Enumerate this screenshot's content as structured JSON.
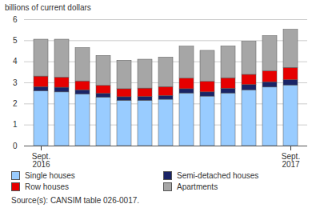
{
  "chart_data": {
    "type": "bar",
    "stacked": true,
    "y_label": "billions of current dollars",
    "categories": [
      "Sept.\n2016",
      null,
      null,
      null,
      null,
      null,
      null,
      null,
      null,
      null,
      null,
      null,
      "Sept.\n2017"
    ],
    "series": [
      {
        "name": "Single houses",
        "color": "#99ccff",
        "values": [
          2.6,
          2.55,
          2.45,
          2.3,
          2.15,
          2.15,
          2.2,
          2.5,
          2.35,
          2.5,
          2.65,
          2.78,
          2.88
        ]
      },
      {
        "name": "Semi-detached houses",
        "color": "#1a2466",
        "values": [
          0.2,
          0.22,
          0.2,
          0.18,
          0.17,
          0.18,
          0.18,
          0.2,
          0.2,
          0.22,
          0.25,
          0.25,
          0.25
        ]
      },
      {
        "name": "Row houses",
        "color": "#e60000",
        "values": [
          0.5,
          0.48,
          0.42,
          0.38,
          0.38,
          0.4,
          0.42,
          0.5,
          0.5,
          0.5,
          0.48,
          0.52,
          0.58
        ]
      },
      {
        "name": "Apartments",
        "color": "#a6a6a6",
        "values": [
          1.75,
          1.8,
          1.58,
          1.42,
          1.35,
          1.37,
          1.4,
          1.52,
          1.47,
          1.51,
          1.57,
          1.67,
          1.81
        ]
      }
    ],
    "ylim": [
      0,
      6
    ],
    "yticks": [
      0,
      1,
      2,
      3,
      4,
      5,
      6
    ],
    "grid": true,
    "legend": "bottom",
    "source": "Source(s): CANSIM table 026-0017."
  }
}
